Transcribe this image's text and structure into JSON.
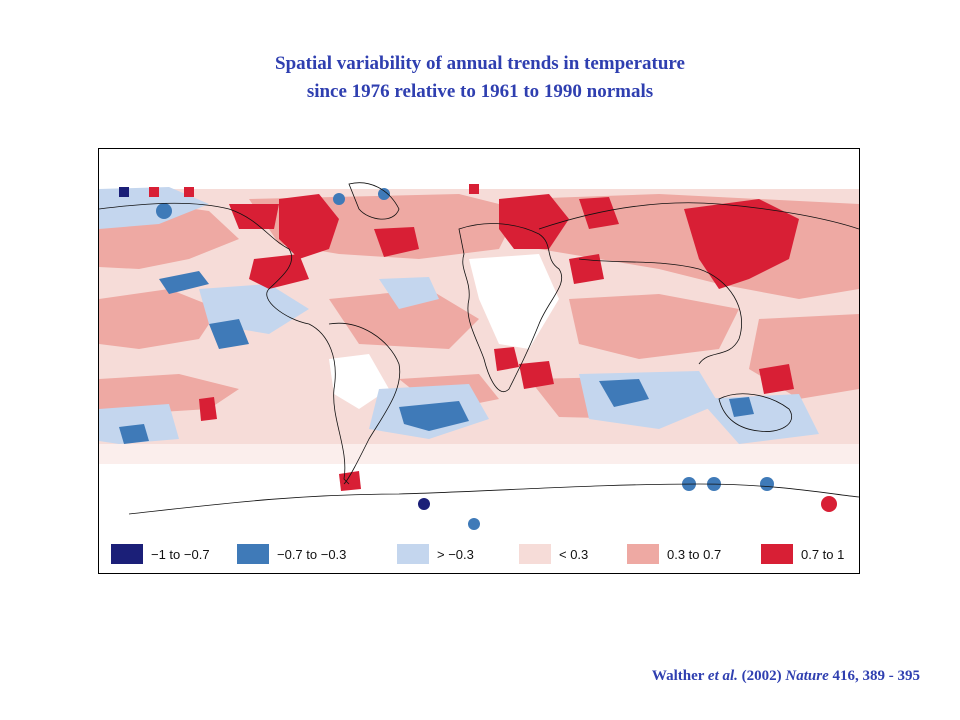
{
  "title": {
    "line1": "Spatial variability of annual trends in temperature",
    "line2": "since 1976 relative to 1961 to 1990 normals"
  },
  "legend": [
    {
      "label": "−1 to −0.7",
      "color": "#1b1f78"
    },
    {
      "label": "−0.7 to −0.3",
      "color": "#3f7ab8"
    },
    {
      "label": "> −0.3",
      "color": "#c4d6ee"
    },
    {
      "label": "< 0.3",
      "color": "#f6dcd8"
    },
    {
      "label": "0.3 to 0.7",
      "color": "#eea9a3"
    },
    {
      "label": "0.7 to 1",
      "color": "#d81f35"
    }
  ],
  "citation": {
    "authors": "Walther",
    "etal": "et al.",
    "year": "(2002)",
    "journal": "Nature",
    "ref": "416, 389 - 395"
  }
}
